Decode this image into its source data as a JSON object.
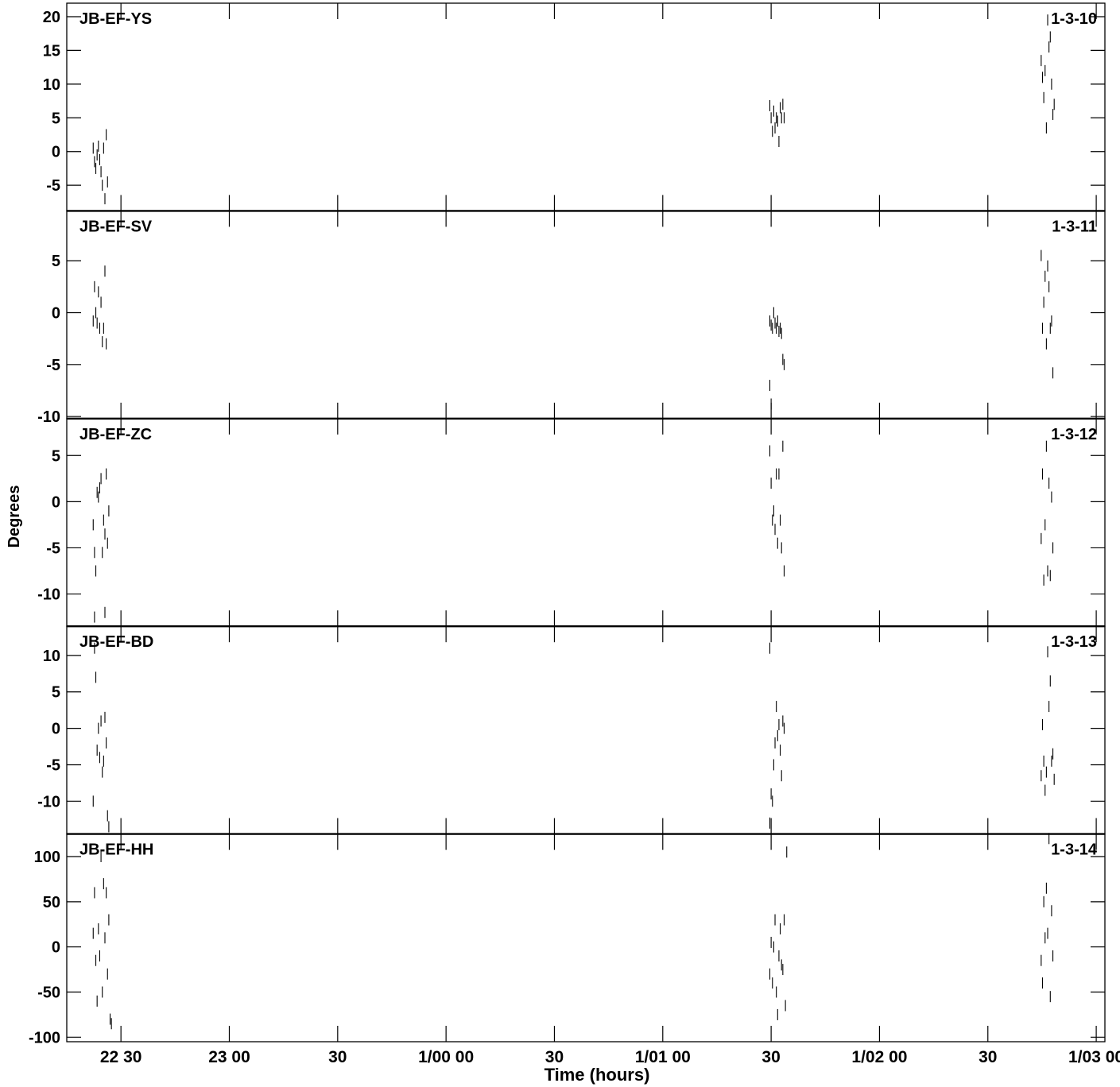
{
  "chart_data": {
    "type": "scatter",
    "ylabel": "Degrees",
    "xlabel": "Time (hours)",
    "x_ticks": [
      {
        "t": 22.5,
        "label": "22 30"
      },
      {
        "t": 23.0,
        "label": "23 00"
      },
      {
        "t": 23.5,
        "label": "30"
      },
      {
        "t": 24.0,
        "label": "1/00 00"
      },
      {
        "t": 24.5,
        "label": "30"
      },
      {
        "t": 25.0,
        "label": "1/01 00"
      },
      {
        "t": 25.5,
        "label": "30"
      },
      {
        "t": 26.0,
        "label": "1/02 00"
      },
      {
        "t": 26.5,
        "label": "30"
      },
      {
        "t": 27.0,
        "label": "1/03 00"
      }
    ],
    "xlim": [
      22.25,
      27.04
    ],
    "panels": [
      {
        "baseline": "JB-EF-YS",
        "id": "1-3-10",
        "ylim": [
          -8.8,
          22
        ],
        "yticks": [
          -5,
          0,
          5,
          10,
          15,
          20
        ],
        "points": [
          [
            22.372,
            0.5
          ],
          [
            22.378,
            -1.5
          ],
          [
            22.384,
            -2.5
          ],
          [
            22.39,
            -0.5
          ],
          [
            22.396,
            0.8
          ],
          [
            22.402,
            -1.2
          ],
          [
            22.408,
            -3
          ],
          [
            22.414,
            -5
          ],
          [
            22.42,
            0.5
          ],
          [
            22.426,
            -7
          ],
          [
            22.432,
            2.5
          ],
          [
            22.438,
            -4.5
          ],
          [
            25.494,
            6.8
          ],
          [
            25.5,
            5
          ],
          [
            25.506,
            3
          ],
          [
            25.512,
            6
          ],
          [
            25.518,
            3.5
          ],
          [
            25.524,
            5
          ],
          [
            25.53,
            4.5
          ],
          [
            25.536,
            1.5
          ],
          [
            25.542,
            6.5
          ],
          [
            25.548,
            5
          ],
          [
            25.554,
            7
          ],
          [
            25.56,
            5
          ],
          [
            26.746,
            13.5
          ],
          [
            26.752,
            11
          ],
          [
            26.758,
            8
          ],
          [
            26.764,
            12
          ],
          [
            26.77,
            3.5
          ],
          [
            26.776,
            19.5
          ],
          [
            26.782,
            15.5
          ],
          [
            26.788,
            17
          ],
          [
            26.794,
            10
          ],
          [
            26.8,
            5.5
          ],
          [
            26.806,
            7
          ]
        ]
      },
      {
        "baseline": "JB-EF-SV",
        "id": "1-3-11",
        "ylim": [
          -10.2,
          9.8
        ],
        "yticks": [
          -10,
          -5,
          0,
          5
        ],
        "points": [
          [
            22.372,
            -0.8
          ],
          [
            22.378,
            2.5
          ],
          [
            22.384,
            0
          ],
          [
            22.39,
            -1
          ],
          [
            22.396,
            2
          ],
          [
            22.402,
            -1.5
          ],
          [
            22.408,
            1
          ],
          [
            22.414,
            -2.8
          ],
          [
            22.42,
            -1.5
          ],
          [
            22.426,
            4
          ],
          [
            22.432,
            -3
          ],
          [
            25.494,
            -0.8
          ],
          [
            25.5,
            -1.2
          ],
          [
            25.506,
            -1.5
          ],
          [
            25.512,
            0
          ],
          [
            25.518,
            -1
          ],
          [
            25.524,
            -1.5
          ],
          [
            25.53,
            -0.8
          ],
          [
            25.536,
            -1.8
          ],
          [
            25.542,
            -1.5
          ],
          [
            25.548,
            -2
          ],
          [
            25.554,
            -4.5
          ],
          [
            25.56,
            -5
          ],
          [
            25.494,
            -7
          ],
          [
            25.5,
            -8.8
          ],
          [
            26.746,
            5.5
          ],
          [
            26.752,
            -1.5
          ],
          [
            26.758,
            1
          ],
          [
            26.764,
            3.5
          ],
          [
            26.77,
            -3
          ],
          [
            26.776,
            4.5
          ],
          [
            26.782,
            2.5
          ],
          [
            26.788,
            -1.5
          ],
          [
            26.794,
            -0.8
          ],
          [
            26.8,
            -5.8
          ]
        ]
      },
      {
        "baseline": "JB-EF-ZC",
        "id": "1-3-12",
        "ylim": [
          -13.5,
          9
        ],
        "yticks": [
          -10,
          -5,
          0,
          5
        ],
        "points": [
          [
            22.372,
            -2.5
          ],
          [
            22.378,
            -5.5
          ],
          [
            22.384,
            -7.5
          ],
          [
            22.39,
            1
          ],
          [
            22.396,
            0.5
          ],
          [
            22.402,
            1.5
          ],
          [
            22.408,
            2.5
          ],
          [
            22.414,
            -5.5
          ],
          [
            22.42,
            -2
          ],
          [
            22.426,
            -3.5
          ],
          [
            22.432,
            3
          ],
          [
            22.438,
            -4.5
          ],
          [
            22.444,
            -1
          ],
          [
            22.378,
            -12.5
          ],
          [
            22.426,
            -12
          ],
          [
            25.494,
            5.5
          ],
          [
            25.5,
            2
          ],
          [
            25.506,
            -2
          ],
          [
            25.512,
            -1
          ],
          [
            25.518,
            -3
          ],
          [
            25.524,
            3
          ],
          [
            25.53,
            -4.5
          ],
          [
            25.536,
            3
          ],
          [
            25.542,
            -2
          ],
          [
            25.548,
            -5
          ],
          [
            25.554,
            6
          ],
          [
            25.56,
            -7.5
          ],
          [
            26.746,
            -4
          ],
          [
            26.752,
            3
          ],
          [
            26.758,
            -8.5
          ],
          [
            26.764,
            -2.5
          ],
          [
            26.77,
            6
          ],
          [
            26.776,
            -7.5
          ],
          [
            26.782,
            2
          ],
          [
            26.788,
            -8
          ],
          [
            26.794,
            0.5
          ],
          [
            26.8,
            -5
          ]
        ]
      },
      {
        "baseline": "JB-EF-BD",
        "id": "1-3-13",
        "ylim": [
          -14.5,
          14
        ],
        "yticks": [
          -10,
          -5,
          0,
          5,
          10
        ],
        "points": [
          [
            22.372,
            -10
          ],
          [
            22.378,
            11
          ],
          [
            22.384,
            7
          ],
          [
            22.39,
            -3
          ],
          [
            22.396,
            0
          ],
          [
            22.402,
            -4
          ],
          [
            22.408,
            1
          ],
          [
            22.414,
            -6
          ],
          [
            22.42,
            -4.5
          ],
          [
            22.426,
            1.5
          ],
          [
            22.432,
            -2
          ],
          [
            22.438,
            -12
          ],
          [
            22.444,
            -13.5
          ],
          [
            25.494,
            11
          ],
          [
            25.5,
            -9
          ],
          [
            25.506,
            -10
          ],
          [
            25.512,
            -5
          ],
          [
            25.518,
            -2
          ],
          [
            25.524,
            3
          ],
          [
            25.53,
            -1
          ],
          [
            25.536,
            0.5
          ],
          [
            25.542,
            -3
          ],
          [
            25.548,
            -6.5
          ],
          [
            25.554,
            1
          ],
          [
            25.56,
            0
          ],
          [
            25.494,
            -13
          ],
          [
            26.746,
            -6.5
          ],
          [
            26.752,
            0.5
          ],
          [
            26.758,
            -4.5
          ],
          [
            26.764,
            -8.5
          ],
          [
            26.77,
            -6
          ],
          [
            26.776,
            10.5
          ],
          [
            26.782,
            3
          ],
          [
            26.788,
            6.5
          ],
          [
            26.794,
            -4.5
          ],
          [
            26.8,
            -3.5
          ],
          [
            26.806,
            -7
          ]
        ]
      },
      {
        "baseline": "JB-EF-HH",
        "id": "1-3-14",
        "ylim": [
          -105,
          125
        ],
        "yticks": [
          -100,
          -50,
          0,
          50,
          100
        ],
        "points": [
          [
            22.372,
            15
          ],
          [
            22.378,
            60
          ],
          [
            22.384,
            -15
          ],
          [
            22.39,
            -60
          ],
          [
            22.396,
            20
          ],
          [
            22.402,
            -10
          ],
          [
            22.408,
            100
          ],
          [
            22.414,
            -50
          ],
          [
            22.42,
            70
          ],
          [
            22.426,
            10
          ],
          [
            22.432,
            60
          ],
          [
            22.438,
            -30
          ],
          [
            22.444,
            30
          ],
          [
            22.45,
            -80
          ],
          [
            22.456,
            -85
          ],
          [
            25.494,
            -30
          ],
          [
            25.5,
            5
          ],
          [
            25.506,
            -40
          ],
          [
            25.512,
            0
          ],
          [
            25.518,
            30
          ],
          [
            25.524,
            -50
          ],
          [
            25.53,
            -75
          ],
          [
            25.536,
            -10
          ],
          [
            25.542,
            20
          ],
          [
            25.548,
            -20
          ],
          [
            25.554,
            -25
          ],
          [
            25.56,
            30
          ],
          [
            25.566,
            -65
          ],
          [
            25.572,
            105
          ],
          [
            26.746,
            -15
          ],
          [
            26.752,
            -40
          ],
          [
            26.758,
            50
          ],
          [
            26.764,
            10
          ],
          [
            26.77,
            65
          ],
          [
            26.776,
            15
          ],
          [
            26.782,
            120
          ],
          [
            26.788,
            -55
          ],
          [
            26.794,
            40
          ],
          [
            26.8,
            -10
          ]
        ]
      }
    ]
  }
}
